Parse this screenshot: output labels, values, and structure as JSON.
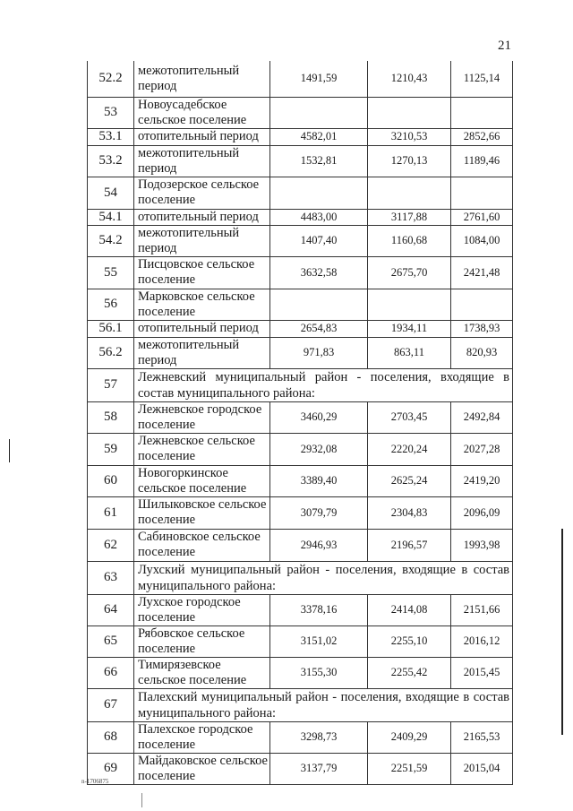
{
  "page_number": "21",
  "footer_code": "n-1706875",
  "rows": [
    {
      "no": "52.2",
      "name": "межотопительный период",
      "v1": "1491,59",
      "v2": "1210,43",
      "v3": "1125,14"
    },
    {
      "no": "53",
      "name": "Новоусадебское сельское поселение",
      "v1": "",
      "v2": "",
      "v3": ""
    },
    {
      "no": "53.1",
      "name": "отопительный период",
      "v1": "4582,01",
      "v2": "3210,53",
      "v3": "2852,66"
    },
    {
      "no": "53.2",
      "name": "межотопительный период",
      "v1": "1532,81",
      "v2": "1270,13",
      "v3": "1189,46"
    },
    {
      "no": "54",
      "name": "Подозерское сельское поселение",
      "v1": "",
      "v2": "",
      "v3": ""
    },
    {
      "no": "54.1",
      "name": "отопительный период",
      "v1": "4483,00",
      "v2": "3117,88",
      "v3": "2761,60"
    },
    {
      "no": "54.2",
      "name": "межотопительный период",
      "v1": "1407,40",
      "v2": "1160,68",
      "v3": "1084,00"
    },
    {
      "no": "55",
      "name": "Писцовское сельское поселение",
      "v1": "3632,58",
      "v2": "2675,70",
      "v3": "2421,48"
    },
    {
      "no": "56",
      "name": "Марковское сельское поселение",
      "v1": "",
      "v2": "",
      "v3": ""
    },
    {
      "no": "56.1",
      "name": "отопительный период",
      "v1": "2654,83",
      "v2": "1934,11",
      "v3": "1738,93"
    },
    {
      "no": "56.2",
      "name": "межотопительный период",
      "v1": "971,83",
      "v2": "863,11",
      "v3": "820,93"
    },
    {
      "no": "57",
      "heading": "Лежневский муниципальный район - поселения, входящие в состав муниципального района:"
    },
    {
      "no": "58",
      "name": "Лежневское городское поселение",
      "v1": "3460,29",
      "v2": "2703,45",
      "v3": "2492,84"
    },
    {
      "no": "59",
      "name": "Лежневское сельское поселение",
      "v1": "2932,08",
      "v2": "2220,24",
      "v3": "2027,28"
    },
    {
      "no": "60",
      "name": "Новогоркинское сельское поселение",
      "v1": "3389,40",
      "v2": "2625,24",
      "v3": "2419,20"
    },
    {
      "no": "61",
      "name": "Шилыковское сельское поселение",
      "v1": "3079,79",
      "v2": "2304,83",
      "v3": "2096,09"
    },
    {
      "no": "62",
      "name": "Сабиновское сельское поселение",
      "v1": "2946,93",
      "v2": "2196,57",
      "v3": "1993,98"
    },
    {
      "no": "63",
      "heading": "Лухский муниципальный район - поселения, входящие в состав муниципального района:"
    },
    {
      "no": "64",
      "name": "Лухское городское поселение",
      "v1": "3378,16",
      "v2": "2414,08",
      "v3": "2151,66"
    },
    {
      "no": "65",
      "name": "Рябовское сельское поселение",
      "v1": "3151,02",
      "v2": "2255,10",
      "v3": "2016,12"
    },
    {
      "no": "66",
      "name": "Тимирязевское сельское поселение",
      "v1": "3155,30",
      "v2": "2255,42",
      "v3": "2015,45"
    },
    {
      "no": "67",
      "heading": "Палехский муниципальный район - поселения, входящие в состав муниципального района:"
    },
    {
      "no": "68",
      "name": "Палехское городское поселение",
      "v1": "3298,73",
      "v2": "2409,29",
      "v3": "2165,53"
    },
    {
      "no": "69",
      "name": "Майдаковское сельское поселение",
      "v1": "3137,79",
      "v2": "2251,59",
      "v3": "2015,04"
    }
  ]
}
